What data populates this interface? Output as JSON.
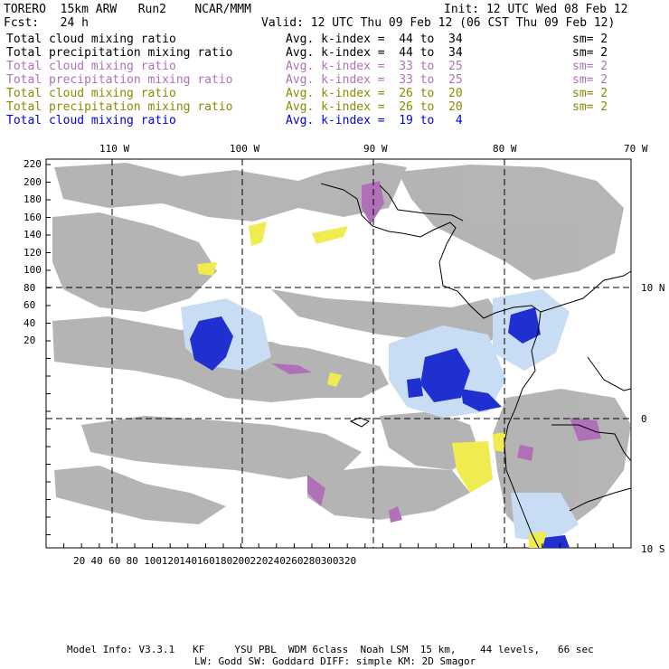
{
  "header": {
    "model": "TORERO  15km ARW   Run2    NCAR/MMM",
    "init": "Init: 12 UTC Wed 08 Feb 12",
    "fcst": "Fcst:   24 h",
    "valid": "Valid: 12 UTC Thu 09 Feb 12 (06 CST Thu 09 Feb 12)"
  },
  "legend": [
    {
      "field": "Total cloud mixing ratio",
      "index": "Avg. k-index =  44 to  34",
      "sm": "sm= 2",
      "color": "#000000"
    },
    {
      "field": "Total precipitation mixing ratio",
      "index": "Avg. k-index =  44 to  34",
      "sm": "sm= 2",
      "color": "#000000"
    },
    {
      "field": "Total cloud mixing ratio",
      "index": "Avg. k-index =  33 to  25",
      "sm": "sm= 2",
      "color": "#b070b8"
    },
    {
      "field": "Total precipitation mixing ratio",
      "index": "Avg. k-index =  33 to  25",
      "sm": "sm= 2",
      "color": "#b070b8"
    },
    {
      "field": "Total cloud mixing ratio",
      "index": "Avg. k-index =  26 to  20",
      "sm": "sm= 2",
      "color": "#8a8a00"
    },
    {
      "field": "Total precipitation mixing ratio",
      "index": "Avg. k-index =  26 to  20",
      "sm": "sm= 2",
      "color": "#8a8a00"
    },
    {
      "field": "Total cloud mixing ratio",
      "index": "Avg. k-index =  19 to   4",
      "sm": "",
      "color": "#0000e0"
    }
  ],
  "map": {
    "lon_labels": [
      "110 W",
      "100 W",
      "90 W",
      "80 W",
      "70 W"
    ],
    "lat_labels": [
      "10 N",
      "0",
      "10 S"
    ],
    "y_ticks": [
      "220",
      "200",
      "180",
      "160",
      "140",
      "120",
      "100",
      "80",
      "60",
      "40",
      "20"
    ],
    "x_ticks": [
      "20",
      "40",
      "60",
      "80",
      "100",
      "120",
      "140",
      "160",
      "180",
      "200",
      "220",
      "240",
      "260",
      "280",
      "300",
      "320"
    ]
  },
  "footer": {
    "line1": "Model Info: V3.3.1   KF     YSU PBL  WDM 6class  Noah LSM  15 km,    44 levels,   66 sec",
    "line2": "LW: Godd SW: Goddard DIFF: simple KM: 2D Smagor"
  }
}
